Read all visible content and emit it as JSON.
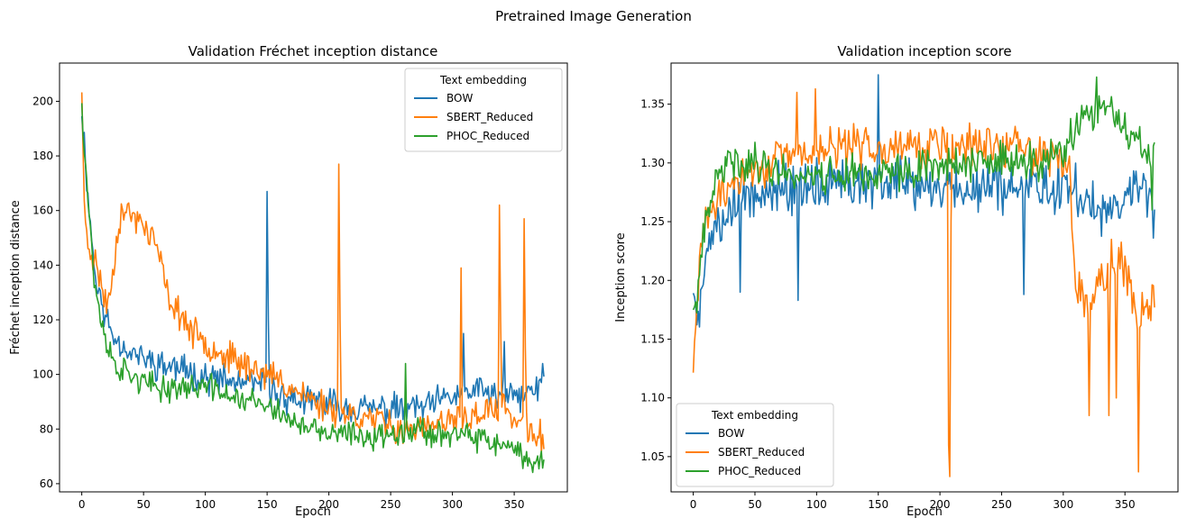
{
  "figure": {
    "title": "Pretrained Image Generation"
  },
  "colors": {
    "BOW": "#1f77b4",
    "SBERT_Reduced": "#ff7f0e",
    "PHOC_Reduced": "#2ca02c"
  },
  "chart_data": [
    {
      "type": "line",
      "title": "Validation Fréchet inception distance",
      "xlabel": "Epoch",
      "ylabel": "Fréchet inception distance",
      "xlim": [
        -18,
        393
      ],
      "ylim": [
        57,
        214
      ],
      "xticks": [
        0,
        50,
        100,
        150,
        200,
        250,
        300,
        350
      ],
      "yticks": [
        60,
        80,
        100,
        120,
        140,
        160,
        180,
        200
      ],
      "grid": false,
      "legend": {
        "title": "Text embedding",
        "placement": "top-right"
      },
      "n_points": 375,
      "series": [
        {
          "name": "BOW",
          "color": "#1f77b4",
          "anchors": [
            [
              0,
              198
            ],
            [
              3,
              178
            ],
            [
              6,
              160
            ],
            [
              10,
              140
            ],
            [
              15,
              127
            ],
            [
              20,
              120
            ],
            [
              25,
              115
            ],
            [
              30,
              112
            ],
            [
              40,
              108
            ],
            [
              50,
              106
            ],
            [
              60,
              104
            ],
            [
              70,
              103
            ],
            [
              80,
              102
            ],
            [
              100,
              99
            ],
            [
              120,
              97
            ],
            [
              148,
              96
            ],
            [
              160,
              92
            ],
            [
              180,
              90
            ],
            [
              200,
              89
            ],
            [
              220,
              88
            ],
            [
              250,
              87
            ],
            [
              280,
              88
            ],
            [
              300,
              92
            ],
            [
              320,
              94
            ],
            [
              340,
              92
            ],
            [
              355,
              92
            ],
            [
              374,
              96
            ]
          ],
          "spikes": [
            [
              150,
              167
            ],
            [
              151,
              120
            ],
            [
              309,
              115
            ],
            [
              342,
              112
            ],
            [
              373,
              104
            ]
          ],
          "noise": 7,
          "seed": 11
        },
        {
          "name": "SBERT_Reduced",
          "color": "#ff7f0e",
          "anchors": [
            [
              0,
              206
            ],
            [
              2,
              160
            ],
            [
              5,
              148
            ],
            [
              10,
              142
            ],
            [
              15,
              135
            ],
            [
              20,
              125
            ],
            [
              25,
              135
            ],
            [
              28,
              150
            ],
            [
              32,
              160
            ],
            [
              40,
              158
            ],
            [
              50,
              155
            ],
            [
              60,
              148
            ],
            [
              70,
              128
            ],
            [
              80,
              122
            ],
            [
              90,
              115
            ],
            [
              100,
              112
            ],
            [
              120,
              106
            ],
            [
              140,
              102
            ],
            [
              160,
              98
            ],
            [
              180,
              92
            ],
            [
              200,
              88
            ],
            [
              220,
              85
            ],
            [
              240,
              83
            ],
            [
              260,
              80
            ],
            [
              280,
              80
            ],
            [
              300,
              83
            ],
            [
              320,
              85
            ],
            [
              340,
              88
            ],
            [
              360,
              80
            ],
            [
              374,
              76
            ]
          ],
          "spikes": [
            [
              208,
              177
            ],
            [
              209,
              120
            ],
            [
              307,
              139
            ],
            [
              338,
              162
            ],
            [
              339,
              120
            ],
            [
              358,
              157
            ],
            [
              359,
              110
            ]
          ],
          "noise": 7,
          "seed": 23
        },
        {
          "name": "PHOC_Reduced",
          "color": "#2ca02c",
          "anchors": [
            [
              0,
              200
            ],
            [
              2,
              185
            ],
            [
              5,
              165
            ],
            [
              10,
              135
            ],
            [
              15,
              120
            ],
            [
              20,
              112
            ],
            [
              25,
              105
            ],
            [
              30,
              102
            ],
            [
              40,
              100
            ],
            [
              50,
              97
            ],
            [
              60,
              95
            ],
            [
              80,
              95
            ],
            [
              100,
              96
            ],
            [
              120,
              92
            ],
            [
              140,
              90
            ],
            [
              160,
              86
            ],
            [
              180,
              80
            ],
            [
              200,
              78
            ],
            [
              220,
              78
            ],
            [
              240,
              77
            ],
            [
              260,
              80
            ],
            [
              280,
              79
            ],
            [
              300,
              78
            ],
            [
              320,
              76
            ],
            [
              340,
              74
            ],
            [
              355,
              70
            ],
            [
              374,
              68
            ]
          ],
          "spikes": [
            [
              262,
              104
            ]
          ],
          "noise": 6,
          "seed": 37
        }
      ]
    },
    {
      "type": "line",
      "title": "Validation inception score",
      "xlabel": "Epoch",
      "ylabel": "Inception score",
      "xlim": [
        -18,
        393
      ],
      "ylim": [
        1.02,
        1.385
      ],
      "xticks": [
        0,
        50,
        100,
        150,
        200,
        250,
        300,
        350
      ],
      "yticks": [
        1.05,
        1.1,
        1.15,
        1.2,
        1.25,
        1.3,
        1.35
      ],
      "grid": false,
      "legend": {
        "title": "Text embedding",
        "placement": "bottom-left"
      },
      "n_points": 375,
      "series": [
        {
          "name": "BOW",
          "color": "#1f77b4",
          "anchors": [
            [
              0,
              1.19
            ],
            [
              3,
              1.17
            ],
            [
              8,
              1.2
            ],
            [
              15,
              1.24
            ],
            [
              25,
              1.26
            ],
            [
              40,
              1.27
            ],
            [
              60,
              1.28
            ],
            [
              80,
              1.28
            ],
            [
              100,
              1.28
            ],
            [
              130,
              1.285
            ],
            [
              160,
              1.28
            ],
            [
              200,
              1.28
            ],
            [
              240,
              1.275
            ],
            [
              280,
              1.28
            ],
            [
              300,
              1.28
            ],
            [
              330,
              1.26
            ],
            [
              350,
              1.27
            ],
            [
              365,
              1.29
            ],
            [
              374,
              1.25
            ]
          ],
          "spikes": [
            [
              150,
              1.375
            ],
            [
              151,
              1.29
            ],
            [
              268,
              1.188
            ],
            [
              38,
              1.19
            ],
            [
              85,
              1.183
            ]
          ],
          "noise": 0.028,
          "seed": 5
        },
        {
          "name": "SBERT_Reduced",
          "color": "#ff7f0e",
          "anchors": [
            [
              0,
              1.118
            ],
            [
              3,
              1.18
            ],
            [
              8,
              1.25
            ],
            [
              15,
              1.26
            ],
            [
              30,
              1.28
            ],
            [
              60,
              1.3
            ],
            [
              100,
              1.31
            ],
            [
              140,
              1.315
            ],
            [
              180,
              1.315
            ],
            [
              200,
              1.315
            ],
            [
              240,
              1.315
            ],
            [
              280,
              1.31
            ],
            [
              305,
              1.3
            ],
            [
              310,
              1.2
            ],
            [
              320,
              1.18
            ],
            [
              330,
              1.2
            ],
            [
              340,
              1.22
            ],
            [
              350,
              1.21
            ],
            [
              360,
              1.17
            ],
            [
              374,
              1.185
            ]
          ],
          "spikes": [
            [
              207,
              1.06
            ],
            [
              208,
              1.033
            ],
            [
              209,
              1.25
            ],
            [
              321,
              1.085
            ],
            [
              337,
              1.085
            ],
            [
              343,
              1.1
            ],
            [
              361,
              1.037
            ],
            [
              362,
              1.16
            ],
            [
              84,
              1.36
            ],
            [
              99,
              1.363
            ]
          ],
          "noise": 0.022,
          "seed": 29
        },
        {
          "name": "PHOC_Reduced",
          "color": "#2ca02c",
          "anchors": [
            [
              0,
              1.17
            ],
            [
              5,
              1.2
            ],
            [
              10,
              1.25
            ],
            [
              20,
              1.29
            ],
            [
              30,
              1.3
            ],
            [
              50,
              1.3
            ],
            [
              80,
              1.29
            ],
            [
              120,
              1.29
            ],
            [
              160,
              1.29
            ],
            [
              200,
              1.3
            ],
            [
              240,
              1.3
            ],
            [
              280,
              1.3
            ],
            [
              300,
              1.31
            ],
            [
              320,
              1.34
            ],
            [
              330,
              1.35
            ],
            [
              340,
              1.34
            ],
            [
              355,
              1.32
            ],
            [
              374,
              1.3
            ]
          ],
          "spikes": [
            [
              327,
              1.373
            ],
            [
              372,
              1.26
            ]
          ],
          "noise": 0.02,
          "seed": 41
        }
      ]
    }
  ]
}
